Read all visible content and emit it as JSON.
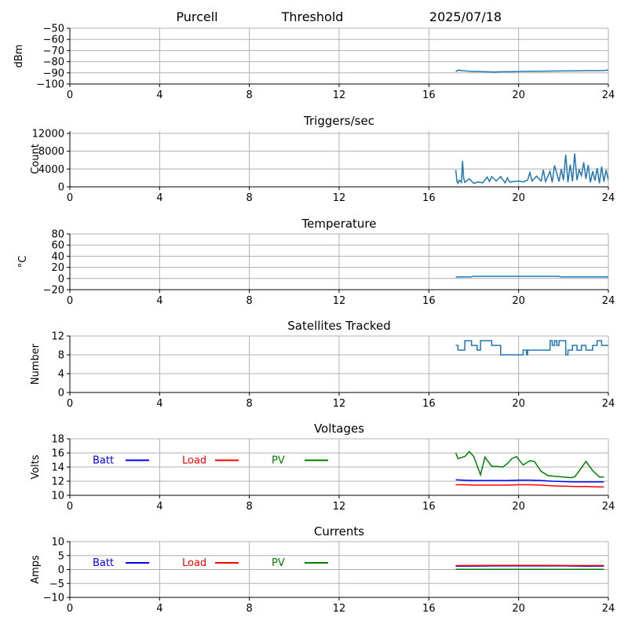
{
  "header": {
    "site": "Purcell",
    "mode": "Threshold",
    "date": "2025/07/18"
  },
  "colors": {
    "series": "#1f77b4",
    "batt": "#0000ff",
    "load": "#ff0000",
    "pv": "#008000",
    "grid": "#b0b0b0"
  },
  "chart_data": [
    {
      "type": "line",
      "title": "",
      "ylabel": "dBm",
      "xlim": [
        0,
        24
      ],
      "ylim": [
        -100,
        -50
      ],
      "xticks": [
        0,
        4,
        8,
        12,
        16,
        20,
        24
      ],
      "yticks": [
        -100,
        -90,
        -80,
        -70,
        -60,
        -50
      ],
      "yticklabels": [
        "−100",
        "−90",
        "−80",
        "−70",
        "−60",
        "−50"
      ],
      "grid": true,
      "series": [
        {
          "color": "#1f77b4",
          "x": [
            17.2,
            17.3,
            17.5,
            17.8,
            18.2,
            18.5,
            18.9,
            19.2,
            19.6,
            20.0,
            20.5,
            21.0,
            21.5,
            22.0,
            22.5,
            23.0,
            23.5,
            23.8,
            24.0
          ],
          "y": [
            -89,
            -87.5,
            -88,
            -88.5,
            -88.8,
            -89,
            -89.2,
            -89,
            -89,
            -88.8,
            -88.6,
            -88.5,
            -88.4,
            -88.3,
            -88.2,
            -88,
            -88,
            -87.8,
            -87.5
          ]
        }
      ]
    },
    {
      "type": "line",
      "title": "Triggers/sec",
      "ylabel": "Count",
      "xlim": [
        0,
        24
      ],
      "ylim": [
        0,
        12500
      ],
      "xticks": [
        0,
        4,
        8,
        12,
        16,
        20,
        24
      ],
      "yticks": [
        0,
        4000,
        8000,
        12000
      ],
      "yticklabels": [
        "0",
        "4000",
        "8000",
        "12000"
      ],
      "grid": true,
      "series": [
        {
          "color": "#1f77b4",
          "x": [
            17.2,
            17.25,
            17.3,
            17.35,
            17.45,
            17.5,
            17.55,
            17.6,
            17.8,
            18.0,
            18.2,
            18.4,
            18.6,
            18.7,
            18.8,
            19.0,
            19.2,
            19.4,
            19.5,
            19.6,
            19.8,
            20.0,
            20.2,
            20.4,
            20.5,
            20.6,
            20.8,
            21.0,
            21.1,
            21.2,
            21.4,
            21.5,
            21.6,
            21.8,
            21.9,
            22.0,
            22.1,
            22.2,
            22.3,
            22.4,
            22.5,
            22.6,
            22.7,
            22.8,
            22.9,
            23.0,
            23.1,
            23.2,
            23.3,
            23.4,
            23.5,
            23.6,
            23.7,
            23.8,
            23.9,
            24.0
          ],
          "y": [
            3800,
            1200,
            800,
            1500,
            1000,
            5800,
            2000,
            1000,
            1800,
            800,
            1100,
            900,
            2200,
            1200,
            2300,
            1300,
            2300,
            900,
            2000,
            1100,
            1200,
            1300,
            1100,
            1500,
            3200,
            1300,
            2400,
            1300,
            3800,
            1200,
            3500,
            1000,
            4800,
            1200,
            4000,
            1500,
            7200,
            1000,
            5000,
            1200,
            7500,
            1500,
            3800,
            2500,
            5500,
            1800,
            4900,
            1000,
            3500,
            1400,
            4200,
            800,
            4500,
            1200,
            3800,
            1500
          ]
        }
      ]
    },
    {
      "type": "line",
      "title": "Temperature",
      "ylabel": "°C",
      "xlim": [
        0,
        24
      ],
      "ylim": [
        -20,
        80
      ],
      "xticks": [
        0,
        4,
        8,
        12,
        16,
        20,
        24
      ],
      "yticks": [
        -20,
        0,
        20,
        40,
        60,
        80
      ],
      "yticklabels": [
        "−20",
        "0",
        "20",
        "40",
        "60",
        "80"
      ],
      "grid": true,
      "series": [
        {
          "color": "#1f77b4",
          "x": [
            17.2,
            17.3,
            17.9,
            17.95,
            21.8,
            21.85,
            24.0
          ],
          "y": [
            2,
            3,
            3,
            4,
            4,
            3,
            3
          ]
        }
      ]
    },
    {
      "type": "line",
      "title": "Satellites Tracked",
      "ylabel": "Number",
      "xlim": [
        0,
        24
      ],
      "ylim": [
        0,
        12
      ],
      "xticks": [
        0,
        4,
        8,
        12,
        16,
        20,
        24
      ],
      "yticks": [
        0,
        4,
        8,
        12
      ],
      "yticklabels": [
        "0",
        "4",
        "8",
        "12"
      ],
      "grid": true,
      "series": [
        {
          "color": "#1f77b4",
          "x": [
            17.2,
            17.3,
            17.3,
            17.6,
            17.6,
            17.9,
            17.9,
            18.15,
            18.15,
            18.3,
            18.3,
            18.8,
            18.8,
            19.2,
            19.2,
            20.2,
            20.2,
            20.35,
            20.35,
            20.4,
            20.4,
            21.4,
            21.4,
            21.5,
            21.5,
            21.6,
            21.6,
            21.7,
            21.7,
            21.8,
            21.8,
            22.1,
            22.1,
            22.2,
            22.2,
            22.4,
            22.4,
            22.6,
            22.6,
            22.8,
            22.8,
            23.0,
            23.0,
            23.3,
            23.3,
            23.5,
            23.5,
            23.7,
            23.7,
            24.0
          ],
          "y": [
            10,
            10,
            9,
            9,
            11,
            11,
            10,
            10,
            9,
            9,
            11,
            11,
            10,
            10,
            8,
            8,
            9,
            9,
            8,
            8,
            9,
            9,
            11,
            11,
            10,
            10,
            11,
            11,
            10,
            10,
            11,
            11,
            8,
            8,
            9,
            9,
            10,
            10,
            9,
            9,
            10,
            10,
            9,
            9,
            10,
            10,
            11,
            11,
            10,
            10
          ]
        }
      ]
    },
    {
      "type": "line",
      "title": "Voltages",
      "ylabel": "Volts",
      "xlim": [
        0,
        24
      ],
      "ylim": [
        10,
        18
      ],
      "xticks": [
        0,
        4,
        8,
        12,
        16,
        20,
        24
      ],
      "yticks": [
        10,
        12,
        14,
        16,
        18
      ],
      "yticklabels": [
        "10",
        "12",
        "14",
        "16",
        "18"
      ],
      "grid": true,
      "legend": [
        {
          "name": "Batt",
          "color": "#0000ff"
        },
        {
          "name": "Load",
          "color": "#ff0000"
        },
        {
          "name": "PV",
          "color": "#008000"
        }
      ],
      "series": [
        {
          "name": "Batt",
          "color": "#0000ff",
          "x": [
            17.2,
            17.5,
            18.0,
            18.5,
            19.0,
            19.5,
            20.0,
            20.5,
            21.0,
            21.5,
            22.0,
            22.5,
            23.0,
            23.5,
            23.8
          ],
          "y": [
            12.2,
            12.15,
            12.1,
            12.1,
            12.1,
            12.1,
            12.15,
            12.15,
            12.1,
            12.0,
            11.95,
            11.9,
            11.9,
            11.9,
            11.9
          ]
        },
        {
          "name": "Load",
          "color": "#ff0000",
          "x": [
            17.2,
            17.5,
            18.0,
            18.5,
            19.0,
            19.5,
            20.0,
            20.5,
            21.0,
            21.5,
            22.0,
            22.5,
            23.0,
            23.5,
            23.8
          ],
          "y": [
            11.5,
            11.5,
            11.45,
            11.45,
            11.45,
            11.45,
            11.5,
            11.5,
            11.45,
            11.35,
            11.3,
            11.25,
            11.25,
            11.2,
            11.2
          ]
        },
        {
          "name": "PV",
          "color": "#008000",
          "x": [
            17.2,
            17.3,
            17.6,
            17.8,
            18.0,
            18.3,
            18.5,
            18.8,
            19.0,
            19.3,
            19.5,
            19.7,
            19.9,
            20.2,
            20.5,
            20.7,
            21.0,
            21.3,
            21.6,
            22.0,
            22.3,
            22.5,
            22.8,
            23.0,
            23.3,
            23.6,
            23.8
          ],
          "y": [
            16.0,
            15.2,
            15.5,
            16.2,
            15.5,
            12.9,
            15.4,
            14.1,
            14.1,
            14.0,
            14.5,
            15.2,
            15.5,
            14.3,
            14.9,
            14.8,
            13.4,
            12.8,
            12.7,
            12.6,
            12.5,
            12.6,
            13.9,
            14.8,
            13.5,
            12.6,
            12.6
          ]
        }
      ]
    },
    {
      "type": "line",
      "title": "Currents",
      "ylabel": "Amps",
      "xlim": [
        0,
        24
      ],
      "ylim": [
        -10,
        10
      ],
      "xticks": [
        0,
        4,
        8,
        12,
        16,
        20,
        24
      ],
      "yticks": [
        -10,
        -5,
        0,
        5,
        10
      ],
      "yticklabels": [
        "−10",
        "−5",
        "0",
        "5",
        "10"
      ],
      "grid": true,
      "legend": [
        {
          "name": "Batt",
          "color": "#0000ff"
        },
        {
          "name": "Load",
          "color": "#ff0000"
        },
        {
          "name": "PV",
          "color": "#008000"
        }
      ],
      "series": [
        {
          "name": "Batt",
          "color": "#0000ff",
          "x": [
            17.2,
            18.0,
            19.0,
            20.0,
            21.0,
            22.0,
            23.0,
            23.8
          ],
          "y": [
            1.2,
            1.25,
            1.3,
            1.3,
            1.3,
            1.3,
            1.2,
            1.25
          ]
        },
        {
          "name": "Load",
          "color": "#ff0000",
          "x": [
            17.2,
            18.0,
            19.0,
            20.0,
            21.0,
            22.0,
            23.0,
            23.8
          ],
          "y": [
            1.4,
            1.45,
            1.5,
            1.5,
            1.5,
            1.45,
            1.4,
            1.45
          ]
        },
        {
          "name": "PV",
          "color": "#008000",
          "x": [
            17.2,
            18.0,
            19.0,
            20.0,
            21.0,
            22.0,
            23.0,
            23.8
          ],
          "y": [
            0.05,
            0.05,
            0.05,
            0.05,
            0.05,
            0.05,
            0.05,
            0.05
          ]
        }
      ]
    }
  ]
}
